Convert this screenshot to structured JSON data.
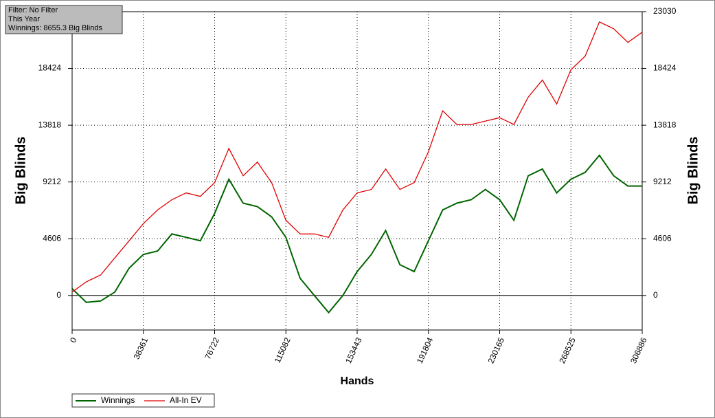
{
  "chart_data": {
    "type": "line",
    "info": [
      "Filter: No Filter",
      "This Year",
      "Winnings: 8655.3 Big Blinds"
    ],
    "xlabel": "Hands",
    "ylabel": "Big Blinds",
    "y2label": "Big Blinds",
    "x": [
      0,
      7672,
      15344,
      23016,
      30688,
      38360,
      46032,
      53704,
      61376,
      69048,
      76720,
      84392,
      92064,
      99736,
      107408,
      115080,
      122752,
      130424,
      138096,
      145768,
      153440,
      161112,
      168784,
      176456,
      184128,
      191800,
      199472,
      207144,
      214816,
      222488,
      230160,
      237832,
      245504,
      253176,
      260848,
      268520,
      276192,
      283864,
      291536,
      299208,
      306886
    ],
    "series": [
      {
        "name": "Winnings",
        "color": "#006400",
        "values": [
          555,
          -555,
          -444,
          278,
          2220,
          3330,
          3608,
          4995,
          4718,
          4440,
          6660,
          9435,
          7493,
          7215,
          6383,
          4718,
          1388,
          0,
          -1388,
          0,
          1943,
          3330,
          5273,
          2498,
          1943,
          4440,
          6938,
          7493,
          7770,
          8603,
          7770,
          6105,
          9713,
          10268,
          8325,
          9435,
          9990,
          11378,
          9713,
          8880,
          8880
        ]
      },
      {
        "name": "All-In EV",
        "color": "#e00000",
        "values": [
          278,
          1110,
          1665,
          3053,
          4440,
          5828,
          6938,
          7770,
          8325,
          8048,
          9158,
          11933,
          9713,
          10823,
          9158,
          6105,
          4995,
          4995,
          4718,
          6938,
          8325,
          8603,
          10268,
          8603,
          9158,
          11655,
          14985,
          13875,
          13875,
          14153,
          14430,
          13875,
          16095,
          17483,
          15540,
          18315,
          19425,
          22200,
          21645,
          20535,
          21368
        ]
      }
    ],
    "xlim": [
      0,
      306886
    ],
    "xticks": [
      0,
      38361,
      76722,
      115082,
      153443,
      191804,
      230165,
      268525,
      306886
    ],
    "ylim": [
      -2800,
      23030
    ],
    "yticks": [
      0,
      4606,
      9212,
      13818,
      18424,
      23030
    ],
    "grid": true
  }
}
